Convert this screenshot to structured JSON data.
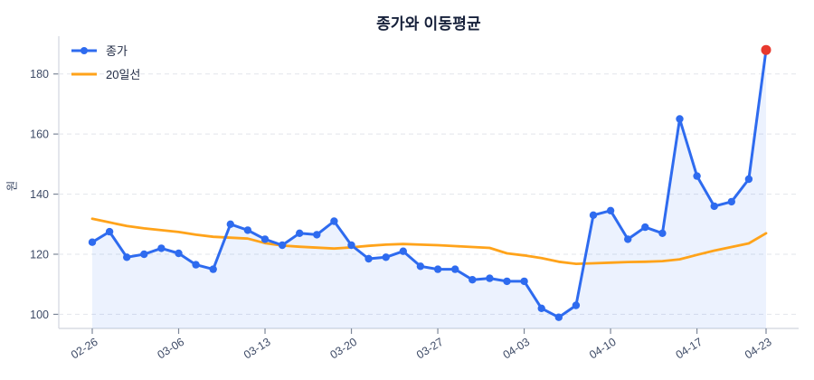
{
  "chart": {
    "title": "종가와 이동평균",
    "ylabel": "원",
    "legend_items": [
      {
        "label": "종가"
      },
      {
        "label": "20일선"
      }
    ]
  },
  "chart_data": {
    "type": "line",
    "title": "종가와 이동평균",
    "xlabel": "",
    "ylabel": "원",
    "n_points": 40,
    "x_tick_labels": [
      "02-26",
      "03-06",
      "03-13",
      "03-20",
      "03-27",
      "04-03",
      "04-10",
      "04-17",
      "04-23"
    ],
    "x_tick_indices": [
      0,
      5,
      10,
      15,
      20,
      25,
      30,
      35,
      39
    ],
    "yticks": [
      100,
      120,
      140,
      160,
      180
    ],
    "ylim": [
      95,
      193
    ],
    "grid": "horizontal-dashed",
    "legend_position": "top-left",
    "colors": {
      "close_line": "#2e6bef",
      "ma_line": "#ffa31a",
      "last_point": "#e8392e",
      "area_fill": "rgba(46,107,239,0.09)",
      "gridline": "#e2e5eb",
      "spine": "#d8dce3",
      "tick": "#7d8798",
      "tick_text": "#3d4a66"
    },
    "series": [
      {
        "name": "종가",
        "type": "line",
        "marker": "circle",
        "area_fill": true,
        "last_point_highlighted": true,
        "values": [
          124,
          127.5,
          119,
          120,
          122,
          120.3,
          116.5,
          115,
          130,
          128,
          125,
          123,
          127,
          126.5,
          131,
          123,
          118.5,
          119,
          121,
          116,
          115,
          115,
          111.5,
          112,
          111,
          111,
          102,
          99,
          103,
          133,
          134.5,
          125,
          129,
          127,
          165,
          146,
          136,
          137.5,
          145,
          188
        ]
      },
      {
        "name": "20일선",
        "type": "line",
        "marker": "none",
        "area_fill": false,
        "values": [
          131.8,
          130.6,
          129.4,
          128.6,
          128.0,
          127.4,
          126.5,
          125.8,
          125.5,
          125.2,
          123.7,
          122.9,
          122.5,
          122.2,
          121.9,
          122.3,
          122.8,
          123.2,
          123.4,
          123.2,
          123.0,
          122.7,
          122.4,
          122.1,
          120.3,
          119.6,
          118.7,
          117.5,
          116.8,
          117.0,
          117.2,
          117.4,
          117.5,
          117.7,
          118.3,
          119.8,
          121.2,
          122.4,
          123.6,
          127.0
        ]
      }
    ]
  }
}
